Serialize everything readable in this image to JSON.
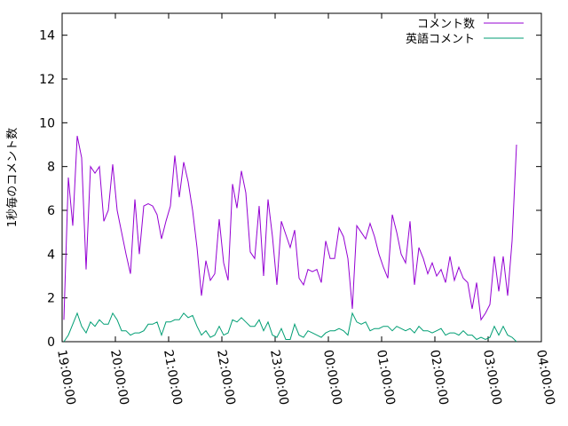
{
  "chart_data": {
    "type": "line",
    "title": "",
    "xlabel": "",
    "ylabel": "1秒毎のコメント数",
    "x_ticks": [
      "19:00:00",
      "20:00:00",
      "21:00:00",
      "22:00:00",
      "23:00:00",
      "00:00:00",
      "01:00:00",
      "02:00:00",
      "03:00:00",
      "04:00:00"
    ],
    "y_ticks": [
      "0",
      "2",
      "4",
      "6",
      "8",
      "10",
      "12",
      "14"
    ],
    "xlim_hours": [
      0,
      9
    ],
    "xlim": [
      "19:00:00",
      "04:00:00"
    ],
    "ylim": [
      0,
      15
    ],
    "grid": false,
    "legend_position": "top-right",
    "x_minutes": [
      0,
      3,
      5,
      7,
      9,
      11,
      13,
      15,
      17,
      19,
      21,
      23,
      25,
      27,
      29,
      31,
      33,
      35,
      37,
      39,
      41,
      43,
      45,
      47,
      49,
      51,
      53,
      55,
      57,
      59,
      61,
      63,
      65,
      67,
      69,
      71,
      73,
      75,
      77,
      79,
      81,
      83,
      85,
      87,
      89,
      91,
      93,
      95,
      97,
      99,
      101,
      103,
      105,
      107,
      109,
      111,
      113,
      115,
      117,
      119,
      121,
      123,
      125,
      127,
      129,
      131,
      133,
      135,
      137,
      139,
      141,
      143,
      145,
      147,
      149,
      151,
      153,
      155,
      157,
      159,
      161,
      163,
      165,
      167,
      169,
      171,
      173,
      175,
      177,
      179,
      181,
      183,
      185,
      187,
      189,
      191,
      193,
      195,
      197,
      199,
      201,
      203,
      205,
      207,
      209,
      211,
      213,
      215,
      217,
      219,
      221,
      223,
      225,
      227,
      229,
      231,
      233,
      235,
      237,
      239,
      241,
      243,
      245,
      247,
      249,
      251,
      253,
      255,
      257,
      259,
      261,
      263,
      265,
      267,
      269,
      271,
      273,
      275,
      277,
      279,
      281,
      283,
      285,
      287,
      289,
      291,
      293,
      295,
      297,
      299,
      301,
      303,
      305,
      307,
      309,
      311,
      313,
      315,
      317,
      319,
      321,
      323,
      325,
      327,
      329,
      331,
      333,
      335,
      337,
      339,
      341,
      343,
      345,
      347,
      349,
      351,
      353,
      355,
      357,
      359,
      361,
      363,
      365,
      367,
      369,
      371,
      373,
      375,
      377,
      379,
      381,
      383,
      385,
      387,
      389,
      391,
      393,
      395,
      397,
      399,
      401,
      403,
      405,
      407,
      409,
      411,
      413,
      415,
      417,
      419,
      421,
      423,
      425,
      427,
      429,
      431,
      433,
      435,
      437,
      439,
      441,
      443,
      445,
      447,
      449,
      451,
      453,
      455,
      457,
      459,
      461,
      463,
      465,
      467,
      469,
      471,
      473,
      475,
      477,
      479,
      481,
      483,
      485,
      487,
      489,
      491,
      493,
      495
    ],
    "series": [
      {
        "name": "コメント数",
        "color": "#9400d3",
        "x_start_min": 2,
        "x_step_min": 5,
        "values": [
          1.0,
          7.5,
          5.3,
          9.4,
          8.4,
          3.3,
          8.0,
          7.7,
          8.0,
          5.5,
          6.0,
          8.1,
          6.0,
          5.0,
          4.0,
          3.1,
          6.5,
          4.0,
          6.2,
          6.3,
          6.2,
          5.8,
          4.7,
          5.5,
          6.2,
          8.5,
          6.6,
          8.2,
          7.3,
          6.0,
          4.3,
          2.1,
          3.7,
          2.8,
          3.1,
          5.6,
          3.6,
          2.8,
          7.2,
          6.1,
          7.8,
          6.8,
          4.1,
          3.8,
          6.2,
          3.0,
          6.5,
          4.8,
          2.6,
          5.5,
          4.9,
          4.3,
          5.1,
          2.9,
          2.6,
          3.3,
          3.2,
          3.3,
          2.7,
          4.6,
          3.8,
          3.8,
          5.2,
          4.8,
          3.8,
          1.5,
          5.3,
          5.0,
          4.7,
          5.4,
          4.8,
          4.0,
          3.4,
          2.9,
          5.8,
          5.0,
          4.0,
          3.6,
          5.5,
          2.6,
          4.3,
          3.8,
          3.1,
          3.6,
          3.0,
          3.3,
          2.7,
          3.9,
          2.8,
          3.4,
          2.9,
          2.7,
          1.5,
          2.7,
          1.0,
          1.3,
          1.7,
          3.9,
          2.3,
          3.9,
          2.1,
          4.6,
          9.0
        ]
      },
      {
        "name": "英語コメント",
        "color": "#009e73",
        "x_start_min": 2,
        "x_step_min": 5,
        "values": [
          0.0,
          0.3,
          0.8,
          1.3,
          0.7,
          0.4,
          0.9,
          0.7,
          1.0,
          0.8,
          0.8,
          1.3,
          1.0,
          0.5,
          0.5,
          0.3,
          0.4,
          0.4,
          0.5,
          0.8,
          0.8,
          0.9,
          0.3,
          0.9,
          0.9,
          1.0,
          1.0,
          1.3,
          1.1,
          1.2,
          0.7,
          0.3,
          0.5,
          0.2,
          0.3,
          0.7,
          0.3,
          0.4,
          1.0,
          0.9,
          1.1,
          0.9,
          0.7,
          0.7,
          1.0,
          0.5,
          0.9,
          0.3,
          0.2,
          0.6,
          0.1,
          0.1,
          0.8,
          0.3,
          0.2,
          0.5,
          0.4,
          0.3,
          0.2,
          0.4,
          0.5,
          0.5,
          0.6,
          0.5,
          0.3,
          1.3,
          0.9,
          0.8,
          0.9,
          0.5,
          0.6,
          0.6,
          0.7,
          0.7,
          0.5,
          0.7,
          0.6,
          0.5,
          0.6,
          0.4,
          0.7,
          0.5,
          0.5,
          0.4,
          0.5,
          0.6,
          0.3,
          0.4,
          0.4,
          0.3,
          0.5,
          0.3,
          0.3,
          0.1,
          0.2,
          0.1,
          0.2,
          0.7,
          0.3,
          0.7,
          0.3,
          0.2,
          0.0
        ]
      }
    ]
  }
}
